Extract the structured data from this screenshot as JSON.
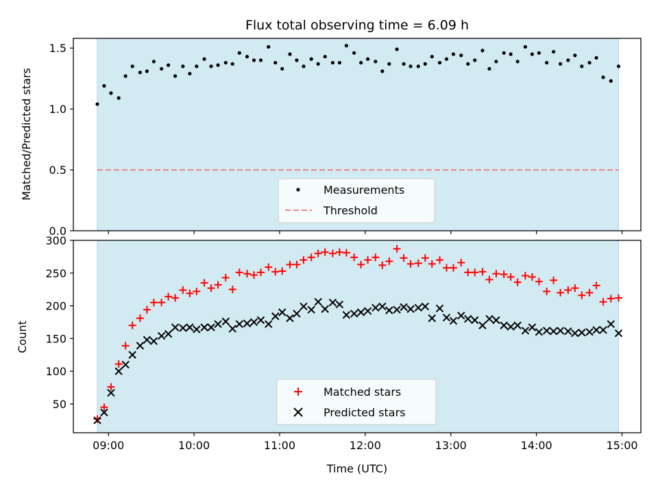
{
  "chart_data": [
    {
      "type": "scatter",
      "title": "Flux total observing time = 6.09 h",
      "xlabel": "",
      "ylabel": "Matched/Predicted stars",
      "xlim": [
        8.59,
        15.22
      ],
      "ylim": [
        0,
        1.58
      ],
      "yticks": [
        0.0,
        0.5,
        1.0,
        1.5
      ],
      "ytick_labels": [
        "0.0",
        "0.5",
        "1.0",
        "1.5"
      ],
      "xticks": [
        9,
        10,
        11,
        12,
        13,
        14,
        15
      ],
      "observing_window": [
        8.87,
        14.96
      ],
      "shade_color": "#add8e6",
      "legend_position": "lower center",
      "threshold": {
        "name": "Threshold",
        "y": 0.5,
        "color": "#f08080",
        "style": "dashed"
      },
      "series": [
        {
          "name": "Measurements",
          "marker": "dot",
          "color": "#000000",
          "x": [
            8.87,
            8.95,
            9.03,
            9.12,
            9.2,
            9.28,
            9.37,
            9.45,
            9.53,
            9.62,
            9.7,
            9.78,
            9.87,
            9.95,
            10.03,
            10.12,
            10.2,
            10.28,
            10.37,
            10.45,
            10.53,
            10.62,
            10.7,
            10.78,
            10.87,
            10.95,
            11.03,
            11.12,
            11.2,
            11.28,
            11.37,
            11.45,
            11.53,
            11.62,
            11.7,
            11.78,
            11.87,
            11.95,
            12.03,
            12.12,
            12.2,
            12.28,
            12.37,
            12.45,
            12.53,
            12.62,
            12.7,
            12.78,
            12.87,
            12.95,
            13.03,
            13.12,
            13.2,
            13.28,
            13.37,
            13.45,
            13.53,
            13.62,
            13.7,
            13.78,
            13.87,
            13.95,
            14.03,
            14.12,
            14.2,
            14.28,
            14.37,
            14.45,
            14.53,
            14.62,
            14.7,
            14.78,
            14.87,
            14.96
          ],
          "y": [
            1.04,
            1.19,
            1.13,
            1.09,
            1.27,
            1.35,
            1.3,
            1.31,
            1.39,
            1.33,
            1.36,
            1.27,
            1.35,
            1.29,
            1.35,
            1.41,
            1.35,
            1.36,
            1.38,
            1.37,
            1.46,
            1.43,
            1.4,
            1.4,
            1.51,
            1.38,
            1.33,
            1.45,
            1.4,
            1.35,
            1.41,
            1.37,
            1.43,
            1.38,
            1.38,
            1.52,
            1.46,
            1.38,
            1.41,
            1.39,
            1.31,
            1.37,
            1.49,
            1.37,
            1.35,
            1.35,
            1.37,
            1.43,
            1.38,
            1.41,
            1.45,
            1.44,
            1.37,
            1.4,
            1.48,
            1.33,
            1.39,
            1.46,
            1.45,
            1.39,
            1.51,
            1.45,
            1.46,
            1.38,
            1.47,
            1.37,
            1.4,
            1.44,
            1.35,
            1.38,
            1.42,
            1.26,
            1.23,
            1.35
          ]
        }
      ]
    },
    {
      "type": "scatter",
      "title": "",
      "xlabel": "Time (UTC)",
      "ylabel": "Count",
      "xlim": [
        8.59,
        15.22
      ],
      "ylim": [
        6,
        300
      ],
      "yticks": [
        50,
        100,
        150,
        200,
        250,
        300
      ],
      "ytick_labels": [
        "50",
        "100",
        "150",
        "200",
        "250",
        "300"
      ],
      "xticks": [
        9,
        10,
        11,
        12,
        13,
        14,
        15
      ],
      "xtick_labels": [
        "09:00",
        "10:00",
        "11:00",
        "12:00",
        "13:00",
        "14:00",
        "15:00"
      ],
      "observing_window": [
        8.87,
        14.96
      ],
      "shade_color": "#add8e6",
      "legend_position": "lower center",
      "series": [
        {
          "name": "Matched stars",
          "marker": "plus",
          "color": "#ff0000",
          "x": [
            8.87,
            8.95,
            9.03,
            9.12,
            9.2,
            9.28,
            9.37,
            9.45,
            9.53,
            9.62,
            9.7,
            9.78,
            9.87,
            9.95,
            10.03,
            10.12,
            10.2,
            10.28,
            10.37,
            10.45,
            10.53,
            10.62,
            10.7,
            10.78,
            10.87,
            10.95,
            11.03,
            11.12,
            11.2,
            11.28,
            11.37,
            11.45,
            11.53,
            11.62,
            11.7,
            11.78,
            11.87,
            11.95,
            12.03,
            12.12,
            12.2,
            12.28,
            12.37,
            12.45,
            12.53,
            12.62,
            12.7,
            12.78,
            12.87,
            12.95,
            13.03,
            13.12,
            13.2,
            13.28,
            13.37,
            13.45,
            13.53,
            13.62,
            13.7,
            13.78,
            13.87,
            13.95,
            14.03,
            14.12,
            14.2,
            14.28,
            14.37,
            14.45,
            14.53,
            14.62,
            14.7,
            14.78,
            14.87,
            14.96
          ],
          "y": [
            27,
            45,
            76,
            111,
            139,
            170,
            181,
            194,
            205,
            205,
            214,
            212,
            224,
            219,
            222,
            235,
            227,
            232,
            243,
            225,
            251,
            249,
            247,
            251,
            259,
            252,
            253,
            263,
            263,
            270,
            274,
            280,
            282,
            280,
            282,
            281,
            274,
            263,
            270,
            274,
            262,
            268,
            287,
            273,
            264,
            265,
            273,
            264,
            270,
            258,
            258,
            266,
            251,
            251,
            252,
            240,
            249,
            248,
            244,
            236,
            246,
            244,
            237,
            222,
            239,
            220,
            224,
            227,
            216,
            220,
            231,
            206,
            211,
            212
          ]
        },
        {
          "name": "Predicted stars",
          "marker": "x",
          "color": "#000000",
          "x": [
            8.87,
            8.95,
            9.03,
            9.12,
            9.2,
            9.28,
            9.37,
            9.45,
            9.53,
            9.62,
            9.7,
            9.78,
            9.87,
            9.95,
            10.03,
            10.12,
            10.2,
            10.28,
            10.37,
            10.45,
            10.53,
            10.62,
            10.7,
            10.78,
            10.87,
            10.95,
            11.03,
            11.12,
            11.2,
            11.28,
            11.37,
            11.45,
            11.53,
            11.62,
            11.7,
            11.78,
            11.87,
            11.95,
            12.03,
            12.12,
            12.2,
            12.28,
            12.37,
            12.45,
            12.53,
            12.62,
            12.7,
            12.78,
            12.87,
            12.95,
            13.03,
            13.12,
            13.2,
            13.28,
            13.37,
            13.45,
            13.53,
            13.62,
            13.7,
            13.78,
            13.87,
            13.95,
            14.03,
            14.12,
            14.2,
            14.28,
            14.37,
            14.45,
            14.53,
            14.62,
            14.7,
            14.78,
            14.87,
            14.96
          ],
          "y": [
            25,
            37,
            67,
            100,
            110,
            125,
            139,
            148,
            146,
            154,
            157,
            167,
            166,
            167,
            164,
            167,
            167,
            172,
            176,
            165,
            172,
            173,
            175,
            178,
            172,
            184,
            190,
            181,
            188,
            199,
            194,
            206,
            195,
            205,
            202,
            186,
            188,
            190,
            192,
            197,
            199,
            193,
            194,
            198,
            195,
            197,
            199,
            181,
            196,
            182,
            177,
            185,
            180,
            178,
            170,
            180,
            178,
            170,
            168,
            170,
            162,
            167,
            160,
            162,
            161,
            162,
            161,
            158,
            159,
            160,
            163,
            163,
            172,
            158
          ]
        }
      ]
    }
  ]
}
